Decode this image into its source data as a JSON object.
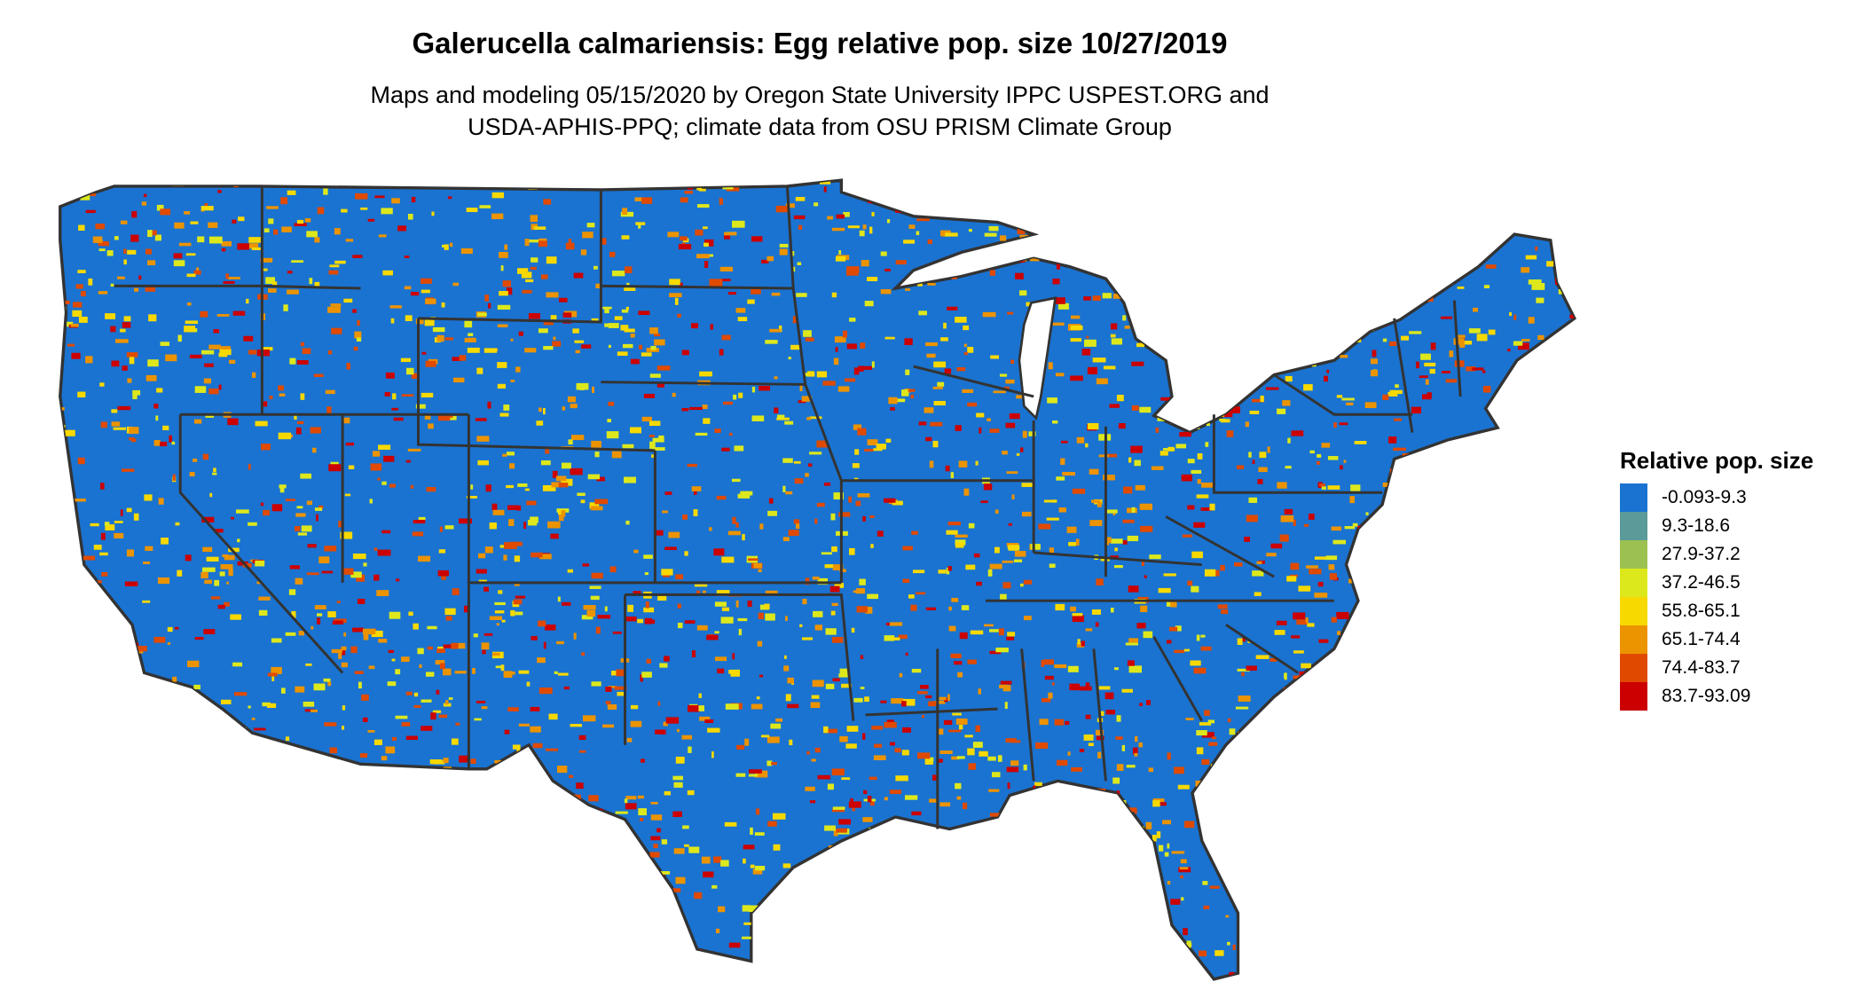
{
  "title": "Galerucella calmariensis: Egg relative pop. size 10/27/2019",
  "subtitle_line1": "Maps and modeling 05/15/2020 by Oregon State University IPPC USPEST.ORG and",
  "subtitle_line2": "USDA-APHIS-PPQ; climate data from OSU PRISM Climate Group",
  "legend": {
    "title": "Relative pop. size",
    "items": [
      {
        "label": "-0.093-9.3",
        "color": "#1a73d1"
      },
      {
        "label": "9.3-18.6",
        "color": "#5a9a98"
      },
      {
        "label": "27.9-37.2",
        "color": "#9cc150"
      },
      {
        "label": "37.2-46.5",
        "color": "#dde81c"
      },
      {
        "label": "55.8-65.1",
        "color": "#f7d900"
      },
      {
        "label": "65.1-74.4",
        "color": "#ec9300"
      },
      {
        "label": "74.4-83.7",
        "color": "#e04a00"
      },
      {
        "label": "83.7-93.09",
        "color": "#cc0000"
      }
    ]
  },
  "map": {
    "region": "Contiguous United States",
    "background_color": "#1a73d1",
    "border_color": "#333333"
  }
}
